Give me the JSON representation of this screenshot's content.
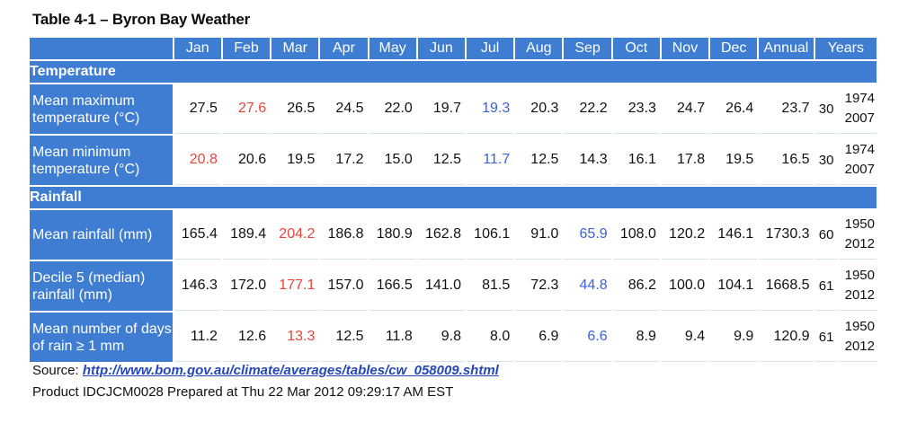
{
  "title": "Table 4-1 – Byron Bay Weather",
  "columns": [
    "Jan",
    "Feb",
    "Mar",
    "Apr",
    "May",
    "Jun",
    "Jul",
    "Aug",
    "Sep",
    "Oct",
    "Nov",
    "Dec",
    "Annual",
    "Years"
  ],
  "colors": {
    "header_bg": "#3e7dd1",
    "max_highlight": "#e8443a",
    "min_highlight": "#3a62d6"
  },
  "sections": [
    {
      "name": "Temperature",
      "rows": [
        {
          "label": "Mean maximum temperature (°C)",
          "values": [
            "27.5",
            "27.6",
            "26.5",
            "24.5",
            "22.0",
            "19.7",
            "19.3",
            "20.3",
            "22.2",
            "23.3",
            "24.7",
            "26.4"
          ],
          "highlight_max_index": 1,
          "highlight_min_index": 6,
          "annual": "23.7",
          "years": "30",
          "period_start": "1974",
          "period_end": "2007"
        },
        {
          "label": "Mean minimum temperature (°C)",
          "values": [
            "20.8",
            "20.6",
            "19.5",
            "17.2",
            "15.0",
            "12.5",
            "11.7",
            "12.5",
            "14.3",
            "16.1",
            "17.8",
            "19.5"
          ],
          "highlight_max_index": 0,
          "highlight_min_index": 6,
          "annual": "16.5",
          "years": "30",
          "period_start": "1974",
          "period_end": "2007"
        }
      ]
    },
    {
      "name": "Rainfall",
      "rows": [
        {
          "label": "Mean rainfall (mm)",
          "values": [
            "165.4",
            "189.4",
            "204.2",
            "186.8",
            "180.9",
            "162.8",
            "106.1",
            "91.0",
            "65.9",
            "108.0",
            "120.2",
            "146.1"
          ],
          "highlight_max_index": 2,
          "highlight_min_index": 8,
          "annual": "1730.3",
          "years": "60",
          "period_start": "1950",
          "period_end": "2012"
        },
        {
          "label": "Decile 5 (median) rainfall (mm)",
          "values": [
            "146.3",
            "172.0",
            "177.1",
            "157.0",
            "166.5",
            "141.0",
            "81.5",
            "72.3",
            "44.8",
            "86.2",
            "100.0",
            "104.1"
          ],
          "highlight_max_index": 2,
          "highlight_min_index": 8,
          "annual": "1668.5",
          "years": "61",
          "period_start": "1950",
          "period_end": "2012"
        },
        {
          "label": "Mean number of days of rain ≥ 1 mm",
          "values": [
            "11.2",
            "12.6",
            "13.3",
            "12.5",
            "11.8",
            "9.8",
            "8.0",
            "6.9",
            "6.6",
            "8.9",
            "9.4",
            "9.9"
          ],
          "highlight_max_index": 2,
          "highlight_min_index": 8,
          "annual": "120.9",
          "years": "61",
          "period_start": "1950",
          "period_end": "2012"
        }
      ]
    }
  ],
  "source": {
    "prefix": "Source: ",
    "link_text": "http://www.bom.gov.au/climate/averages/tables/cw_058009.shtml"
  },
  "product_line": "Product IDCJCM0028 Prepared at Thu 22 Mar 2012 09:29:17 AM EST"
}
